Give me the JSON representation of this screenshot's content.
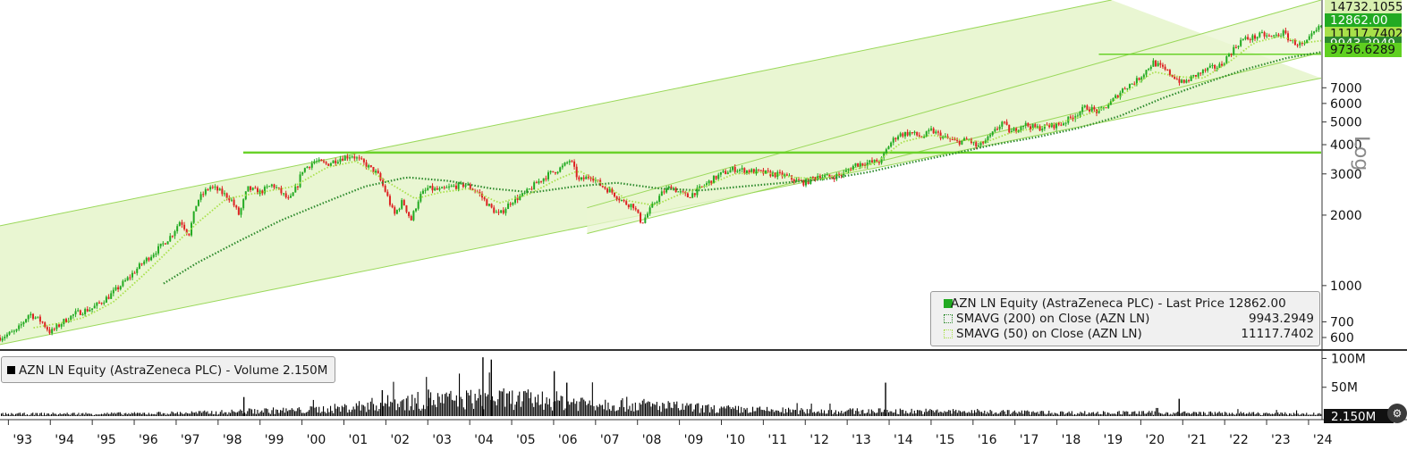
{
  "chart_data": [
    {
      "type": "line",
      "name": "price-panel",
      "title": "AZN LN Equity (AstraZeneca PLC) - Last Price 12862.00",
      "scale": "log",
      "y_ticks": [
        600,
        700,
        1000,
        2000,
        3000,
        4000,
        5000,
        6000,
        7000
      ],
      "y_tick_labels": [
        "600",
        "700",
        "1000",
        "2000",
        "3000",
        "4000",
        "5000",
        "6000",
        "7000"
      ],
      "x_tick_labels": [
        "'93",
        "'94",
        "'95",
        "'96",
        "'97",
        "'98",
        "'99",
        "'00",
        "'01",
        "'02",
        "'03",
        "'04",
        "'05",
        "'06",
        "'07",
        "'08",
        "'09",
        "'10",
        "'11",
        "'12",
        "'13",
        "'14",
        "'15",
        "'16",
        "'17",
        "'18",
        "'19",
        "'20",
        "'21",
        "'22",
        "'23",
        "'24"
      ],
      "x_range": [
        1992.8,
        2024.3
      ],
      "y_range": [
        540,
        16600
      ],
      "series": [
        {
          "name": "AZN LN Equity (AstraZeneca PLC) - Last Price",
          "value_label": "12862.00",
          "color": "#22aa22",
          "points": [
            [
              1992.8,
              600
            ],
            [
              1993.2,
              640
            ],
            [
              1993.5,
              760
            ],
            [
              1993.8,
              700
            ],
            [
              1994.0,
              630
            ],
            [
              1994.3,
              700
            ],
            [
              1994.6,
              760
            ],
            [
              1995.0,
              800
            ],
            [
              1995.4,
              900
            ],
            [
              1995.8,
              1050
            ],
            [
              1996.2,
              1250
            ],
            [
              1996.6,
              1450
            ],
            [
              1996.9,
              1650
            ],
            [
              1997.1,
              1900
            ],
            [
              1997.3,
              1650
            ],
            [
              1997.5,
              2300
            ],
            [
              1997.8,
              2650
            ],
            [
              1998.0,
              2550
            ],
            [
              1998.3,
              2350
            ],
            [
              1998.5,
              2000
            ],
            [
              1998.7,
              2600
            ],
            [
              1999.0,
              2500
            ],
            [
              1999.3,
              2700
            ],
            [
              1999.5,
              2500
            ],
            [
              1999.7,
              2300
            ],
            [
              1999.9,
              2700
            ],
            [
              2000.0,
              3100
            ],
            [
              2000.3,
              3400
            ],
            [
              2000.6,
              3300
            ],
            [
              2000.9,
              3500
            ],
            [
              2001.2,
              3600
            ],
            [
              2001.5,
              3300
            ],
            [
              2001.8,
              3000
            ],
            [
              2002.0,
              2500
            ],
            [
              2002.2,
              2000
            ],
            [
              2002.4,
              2300
            ],
            [
              2002.6,
              1900
            ],
            [
              2002.8,
              2400
            ],
            [
              2003.0,
              2600
            ],
            [
              2003.3,
              2550
            ],
            [
              2003.6,
              2650
            ],
            [
              2003.9,
              2700
            ],
            [
              2004.2,
              2500
            ],
            [
              2004.5,
              2150
            ],
            [
              2004.7,
              2000
            ],
            [
              2005.0,
              2300
            ],
            [
              2005.3,
              2450
            ],
            [
              2005.6,
              2750
            ],
            [
              2005.9,
              3000
            ],
            [
              2006.2,
              3200
            ],
            [
              2006.4,
              3450
            ],
            [
              2006.6,
              2800
            ],
            [
              2006.9,
              2950
            ],
            [
              2007.1,
              2700
            ],
            [
              2007.4,
              2500
            ],
            [
              2007.7,
              2250
            ],
            [
              2007.9,
              2200
            ],
            [
              2008.1,
              1850
            ],
            [
              2008.4,
              2250
            ],
            [
              2008.6,
              2500
            ],
            [
              2008.8,
              2650
            ],
            [
              2009.0,
              2500
            ],
            [
              2009.2,
              2400
            ],
            [
              2009.5,
              2600
            ],
            [
              2009.8,
              2850
            ],
            [
              2010.0,
              3000
            ],
            [
              2010.3,
              3150
            ],
            [
              2010.6,
              3100
            ],
            [
              2010.9,
              3050
            ],
            [
              2011.2,
              3000
            ],
            [
              2011.5,
              2950
            ],
            [
              2011.8,
              2800
            ],
            [
              2012.0,
              2750
            ],
            [
              2012.3,
              2950
            ],
            [
              2012.6,
              2900
            ],
            [
              2012.9,
              3000
            ],
            [
              2013.2,
              3300
            ],
            [
              2013.5,
              3350
            ],
            [
              2013.8,
              3400
            ],
            [
              2014.0,
              4000
            ],
            [
              2014.2,
              4400
            ],
            [
              2014.5,
              4500
            ],
            [
              2014.8,
              4300
            ],
            [
              2015.0,
              4600
            ],
            [
              2015.3,
              4300
            ],
            [
              2015.6,
              4100
            ],
            [
              2015.9,
              4200
            ],
            [
              2016.1,
              3900
            ],
            [
              2016.4,
              4300
            ],
            [
              2016.7,
              5000
            ],
            [
              2016.9,
              4500
            ],
            [
              2017.2,
              4900
            ],
            [
              2017.5,
              4700
            ],
            [
              2017.8,
              4800
            ],
            [
              2018.1,
              4900
            ],
            [
              2018.4,
              5300
            ],
            [
              2018.7,
              5800
            ],
            [
              2019.0,
              5500
            ],
            [
              2019.3,
              6100
            ],
            [
              2019.6,
              7000
            ],
            [
              2019.9,
              7500
            ],
            [
              2020.1,
              8200
            ],
            [
              2020.3,
              9000
            ],
            [
              2020.5,
              8500
            ],
            [
              2020.8,
              7800
            ],
            [
              2021.0,
              7300
            ],
            [
              2021.3,
              7900
            ],
            [
              2021.6,
              8400
            ],
            [
              2021.9,
              8700
            ],
            [
              2022.1,
              9700
            ],
            [
              2022.4,
              11200
            ],
            [
              2022.7,
              11500
            ],
            [
              2022.9,
              11800
            ],
            [
              2023.1,
              11500
            ],
            [
              2023.4,
              12000
            ],
            [
              2023.6,
              11000
            ],
            [
              2023.9,
              10600
            ],
            [
              2024.1,
              11800
            ],
            [
              2024.3,
              12862
            ]
          ]
        },
        {
          "name": "SMAVG (200) on Close (AZN LN)",
          "value_label": "9943.2949",
          "color": "#2d8a2d",
          "points": [
            [
              1996.7,
              1020
            ],
            [
              1997.5,
              1250
            ],
            [
              1998.5,
              1550
            ],
            [
              1999.5,
              1900
            ],
            [
              2000.5,
              2250
            ],
            [
              2001.5,
              2650
            ],
            [
              2002.5,
              2900
            ],
            [
              2003.5,
              2800
            ],
            [
              2004.5,
              2600
            ],
            [
              2005.5,
              2500
            ],
            [
              2006.5,
              2650
            ],
            [
              2007.5,
              2750
            ],
            [
              2008.5,
              2600
            ],
            [
              2009.5,
              2550
            ],
            [
              2010.5,
              2650
            ],
            [
              2011.5,
              2750
            ],
            [
              2012.5,
              2850
            ],
            [
              2013.5,
              3050
            ],
            [
              2014.5,
              3350
            ],
            [
              2015.5,
              3650
            ],
            [
              2016.5,
              4000
            ],
            [
              2017.5,
              4300
            ],
            [
              2018.5,
              4700
            ],
            [
              2019.5,
              5300
            ],
            [
              2020.5,
              6300
            ],
            [
              2021.5,
              7300
            ],
            [
              2022.5,
              8400
            ],
            [
              2023.5,
              9400
            ],
            [
              2024.3,
              9943.2949
            ]
          ]
        },
        {
          "name": "SMAVG (50) on Close (AZN LN)",
          "value_label": "11117.7402",
          "color": "#a8e04a",
          "points": [
            [
              1993.6,
              660
            ],
            [
              1994.2,
              690
            ],
            [
              1994.8,
              730
            ],
            [
              1995.5,
              850
            ],
            [
              1996.2,
              1100
            ],
            [
              1996.8,
              1400
            ],
            [
              1997.5,
              1850
            ],
            [
              1998.2,
              2350
            ],
            [
              1999.0,
              2500
            ],
            [
              1999.8,
              2650
            ],
            [
              2000.6,
              3200
            ],
            [
              2001.3,
              3400
            ],
            [
              2002.0,
              2800
            ],
            [
              2002.7,
              2350
            ],
            [
              2003.3,
              2500
            ],
            [
              2004.0,
              2600
            ],
            [
              2004.7,
              2250
            ],
            [
              2005.4,
              2450
            ],
            [
              2006.1,
              2850
            ],
            [
              2006.6,
              3100
            ],
            [
              2007.2,
              2700
            ],
            [
              2007.8,
              2300
            ],
            [
              2008.4,
              2200
            ],
            [
              2009.0,
              2450
            ],
            [
              2009.6,
              2650
            ],
            [
              2010.3,
              3000
            ],
            [
              2011.0,
              3050
            ],
            [
              2011.7,
              2900
            ],
            [
              2012.4,
              2850
            ],
            [
              2013.0,
              3050
            ],
            [
              2013.7,
              3350
            ],
            [
              2014.3,
              4100
            ],
            [
              2015.0,
              4400
            ],
            [
              2015.7,
              4200
            ],
            [
              2016.3,
              4100
            ],
            [
              2016.9,
              4500
            ],
            [
              2017.6,
              4750
            ],
            [
              2018.3,
              5100
            ],
            [
              2019.0,
              5600
            ],
            [
              2019.7,
              6800
            ],
            [
              2020.3,
              8200
            ],
            [
              2020.9,
              7800
            ],
            [
              2021.5,
              7700
            ],
            [
              2022.1,
              9000
            ],
            [
              2022.7,
              10900
            ],
            [
              2023.3,
              11600
            ],
            [
              2023.9,
              10900
            ],
            [
              2024.3,
              11117.7402
            ]
          ]
        }
      ],
      "horizontal_levels": [
        {
          "value": 3700,
          "from": 1998.6,
          "to": 2024.3
        },
        {
          "value": 9736.6289,
          "from": 2019.0,
          "to": 2024.3
        }
      ],
      "channels": [
        {
          "lower": [
            [
              1992.8,
              560
            ],
            [
              2024.3,
              7700
            ]
          ],
          "upper": [
            [
              1992.8,
              1800
            ],
            [
              2019.3,
              16600
            ]
          ]
        },
        {
          "lower": [
            [
              2006.8,
              1670
            ],
            [
              2024.3,
              9900
            ]
          ],
          "upper": [
            [
              2006.8,
              2150
            ],
            [
              2024.3,
              16600
            ]
          ]
        }
      ],
      "price_tags": [
        {
          "label": "14732.1055",
          "color": "#d8f0b0"
        },
        {
          "label": "12862.00",
          "color": "#22aa22"
        },
        {
          "label": "11117.7402",
          "color": "#a8e04a"
        },
        {
          "label": "9943.2949",
          "color": "#2d8a2d"
        },
        {
          "label": "9736.6289",
          "color": "#5fd020"
        }
      ],
      "axis_scale_label": "Log"
    },
    {
      "type": "bar",
      "name": "volume-panel",
      "title": "AZN LN Equity (AstraZeneca PLC) - Volume 2.150M",
      "y_ticks": [
        50,
        100
      ],
      "y_tick_labels": [
        "50M",
        "100M"
      ],
      "last_value_label": "2.150M",
      "y_range": [
        0,
        110
      ],
      "volume_profile": [
        [
          1992.8,
          5
        ],
        [
          1996.0,
          6
        ],
        [
          1998.0,
          9
        ],
        [
          1999.0,
          13
        ],
        [
          2000.0,
          14
        ],
        [
          2001.0,
          20
        ],
        [
          2002.0,
          32
        ],
        [
          2003.0,
          38
        ],
        [
          2004.0,
          42
        ],
        [
          2005.0,
          42
        ],
        [
          2006.0,
          38
        ],
        [
          2007.0,
          32
        ],
        [
          2008.0,
          28
        ],
        [
          2009.0,
          22
        ],
        [
          2010.0,
          17
        ],
        [
          2012.0,
          12
        ],
        [
          2014.0,
          12
        ],
        [
          2016.0,
          11
        ],
        [
          2018.0,
          8
        ],
        [
          2020.0,
          8
        ],
        [
          2022.0,
          7
        ],
        [
          2024.3,
          5
        ]
      ],
      "spikes": [
        [
          1998.6,
          33
        ],
        [
          2001.9,
          45
        ],
        [
          2003.0,
          46
        ],
        [
          2004.3,
          102
        ],
        [
          2004.5,
          98
        ],
        [
          2006.0,
          78
        ],
        [
          2006.3,
          58
        ],
        [
          2013.9,
          58
        ],
        [
          2020.9,
          30
        ]
      ]
    }
  ],
  "colors": {
    "candle_up": "#22aa22",
    "candle_down": "#dd2222",
    "channel_fill": "#e9f6d2",
    "channel_line": "#9ad85a",
    "level_line": "#6ad22a",
    "volume_bar": "#000000"
  }
}
